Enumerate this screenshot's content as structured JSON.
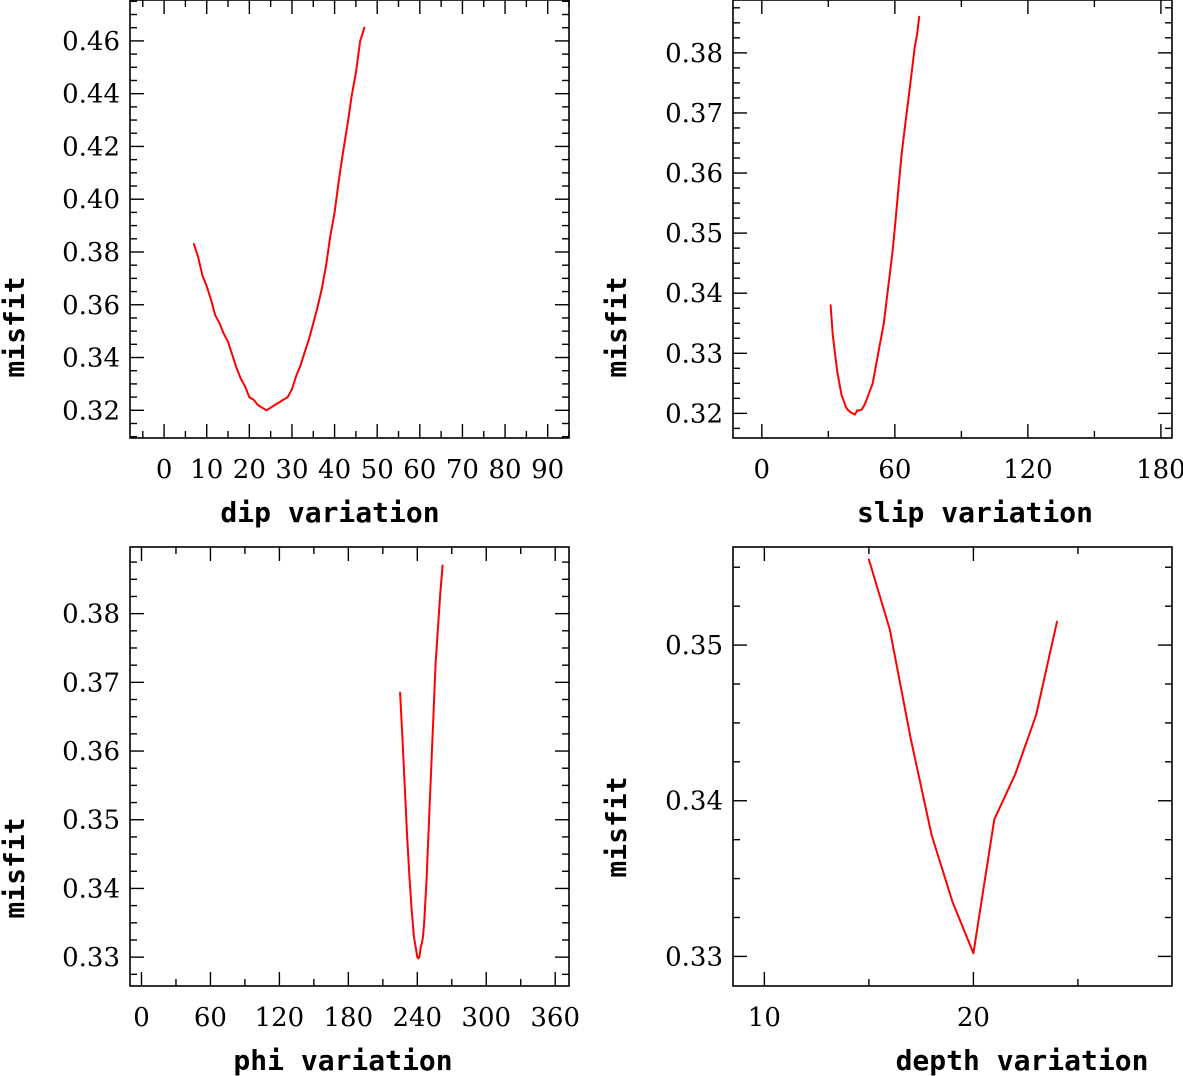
{
  "colors": {
    "line": "#ff0000",
    "axis": "#000000",
    "background": "#ffffff"
  },
  "chart_data": [
    {
      "type": "line",
      "xlabel": "dip    variation",
      "ylabel": "misfit",
      "xlim": [
        -8,
        95
      ],
      "ylim": [
        0.3095,
        0.4755
      ],
      "xticks": [
        0,
        10,
        20,
        30,
        40,
        50,
        60,
        70,
        80,
        90
      ],
      "xtick_labels": [
        "0",
        "10",
        "20",
        "30",
        "40",
        "50",
        "60",
        "70",
        "80",
        "90"
      ],
      "yticks": [
        0.32,
        0.34,
        0.36,
        0.38,
        0.4,
        0.42,
        0.44,
        0.46
      ],
      "ytick_labels": [
        "0.32",
        "0.34",
        "0.36",
        "0.38",
        "0.40",
        "0.42",
        "0.44",
        "0.46"
      ],
      "x": [
        7,
        8,
        9,
        10,
        11,
        12,
        13,
        14,
        15,
        16,
        17,
        18,
        19,
        20,
        21,
        22,
        23,
        24,
        25,
        26,
        27,
        28,
        29,
        30,
        31,
        32,
        33,
        34,
        35,
        36,
        37,
        38,
        39,
        40,
        41,
        42,
        43,
        44,
        45,
        46,
        47
      ],
      "y": [
        0.383,
        0.378,
        0.371,
        0.367,
        0.362,
        0.356,
        0.353,
        0.349,
        0.346,
        0.341,
        0.336,
        0.332,
        0.329,
        0.325,
        0.324,
        0.322,
        0.321,
        0.32,
        0.321,
        0.322,
        0.323,
        0.324,
        0.325,
        0.328,
        0.333,
        0.337,
        0.342,
        0.347,
        0.353,
        0.359,
        0.366,
        0.375,
        0.386,
        0.395,
        0.407,
        0.418,
        0.428,
        0.439,
        0.448,
        0.46,
        0.465
      ]
    },
    {
      "type": "line",
      "xlabel": "slip   variation",
      "ylabel": "misfit",
      "xlim": [
        -13,
        185
      ],
      "ylim": [
        0.3159,
        0.3888
      ],
      "xticks": [
        0,
        60,
        120,
        180
      ],
      "xtick_labels": [
        "0",
        "60",
        "120",
        "180"
      ],
      "yticks": [
        0.32,
        0.33,
        0.34,
        0.35,
        0.36,
        0.37,
        0.38
      ],
      "ytick_labels": [
        "0.32",
        "0.33",
        "0.34",
        "0.35",
        "0.36",
        "0.37",
        "0.38"
      ],
      "x": [
        31,
        32,
        33,
        34,
        35,
        36,
        37,
        38,
        39,
        40,
        41,
        42,
        43,
        44,
        45,
        46,
        47,
        48,
        49,
        50,
        51,
        52,
        53,
        54,
        55,
        56,
        57,
        58,
        59,
        60,
        61,
        62,
        63,
        64,
        65,
        66,
        67,
        68,
        69,
        70,
        71
      ],
      "y": [
        0.338,
        0.333,
        0.33,
        0.327,
        0.325,
        0.323,
        0.322,
        0.321,
        0.3205,
        0.3202,
        0.32,
        0.3198,
        0.3205,
        0.3205,
        0.3206,
        0.3212,
        0.322,
        0.323,
        0.324,
        0.325,
        0.327,
        0.329,
        0.331,
        0.333,
        0.335,
        0.338,
        0.341,
        0.344,
        0.347,
        0.351,
        0.355,
        0.359,
        0.363,
        0.366,
        0.369,
        0.372,
        0.375,
        0.378,
        0.381,
        0.383,
        0.386
      ]
    },
    {
      "type": "line",
      "xlabel": "phi    variation",
      "ylabel": "misfit",
      "xlim": [
        -10,
        372
      ],
      "ylim": [
        0.3258,
        0.3897
      ],
      "xticks": [
        0,
        60,
        120,
        180,
        240,
        300,
        360
      ],
      "xtick_labels": [
        "0",
        "60",
        "120",
        "180",
        "240",
        "300",
        "360"
      ],
      "yticks": [
        0.33,
        0.34,
        0.35,
        0.36,
        0.37,
        0.38
      ],
      "ytick_labels": [
        "0.33",
        "0.34",
        "0.35",
        "0.36",
        "0.37",
        "0.38"
      ],
      "x": [
        225,
        227,
        229,
        231,
        233,
        235,
        237,
        239,
        240,
        241,
        242,
        243,
        244,
        245,
        246,
        247,
        248,
        249,
        250,
        251,
        252,
        253,
        254,
        255,
        256,
        258,
        260,
        262
      ],
      "y": [
        0.3685,
        0.362,
        0.355,
        0.348,
        0.342,
        0.337,
        0.333,
        0.331,
        0.33,
        0.3298,
        0.3302,
        0.3315,
        0.332,
        0.333,
        0.335,
        0.338,
        0.341,
        0.345,
        0.349,
        0.353,
        0.357,
        0.361,
        0.365,
        0.369,
        0.373,
        0.378,
        0.383,
        0.387
      ]
    },
    {
      "type": "line",
      "xlabel": "depth  variation",
      "ylabel": "misfit",
      "xlim": [
        8.5,
        29.5
      ],
      "ylim": [
        0.3281,
        0.3563
      ],
      "xticks": [
        10,
        20
      ],
      "xtick_labels": [
        "10",
        "20"
      ],
      "yticks": [
        0.33,
        0.34,
        0.35
      ],
      "ytick_labels": [
        "0.33",
        "0.34",
        "0.35"
      ],
      "x": [
        15,
        16,
        17,
        18,
        19,
        20,
        21,
        22,
        23,
        24
      ],
      "y": [
        0.3555,
        0.351,
        0.344,
        0.3378,
        0.3335,
        0.3302,
        0.3388,
        0.3417,
        0.3455,
        0.3515
      ]
    }
  ]
}
